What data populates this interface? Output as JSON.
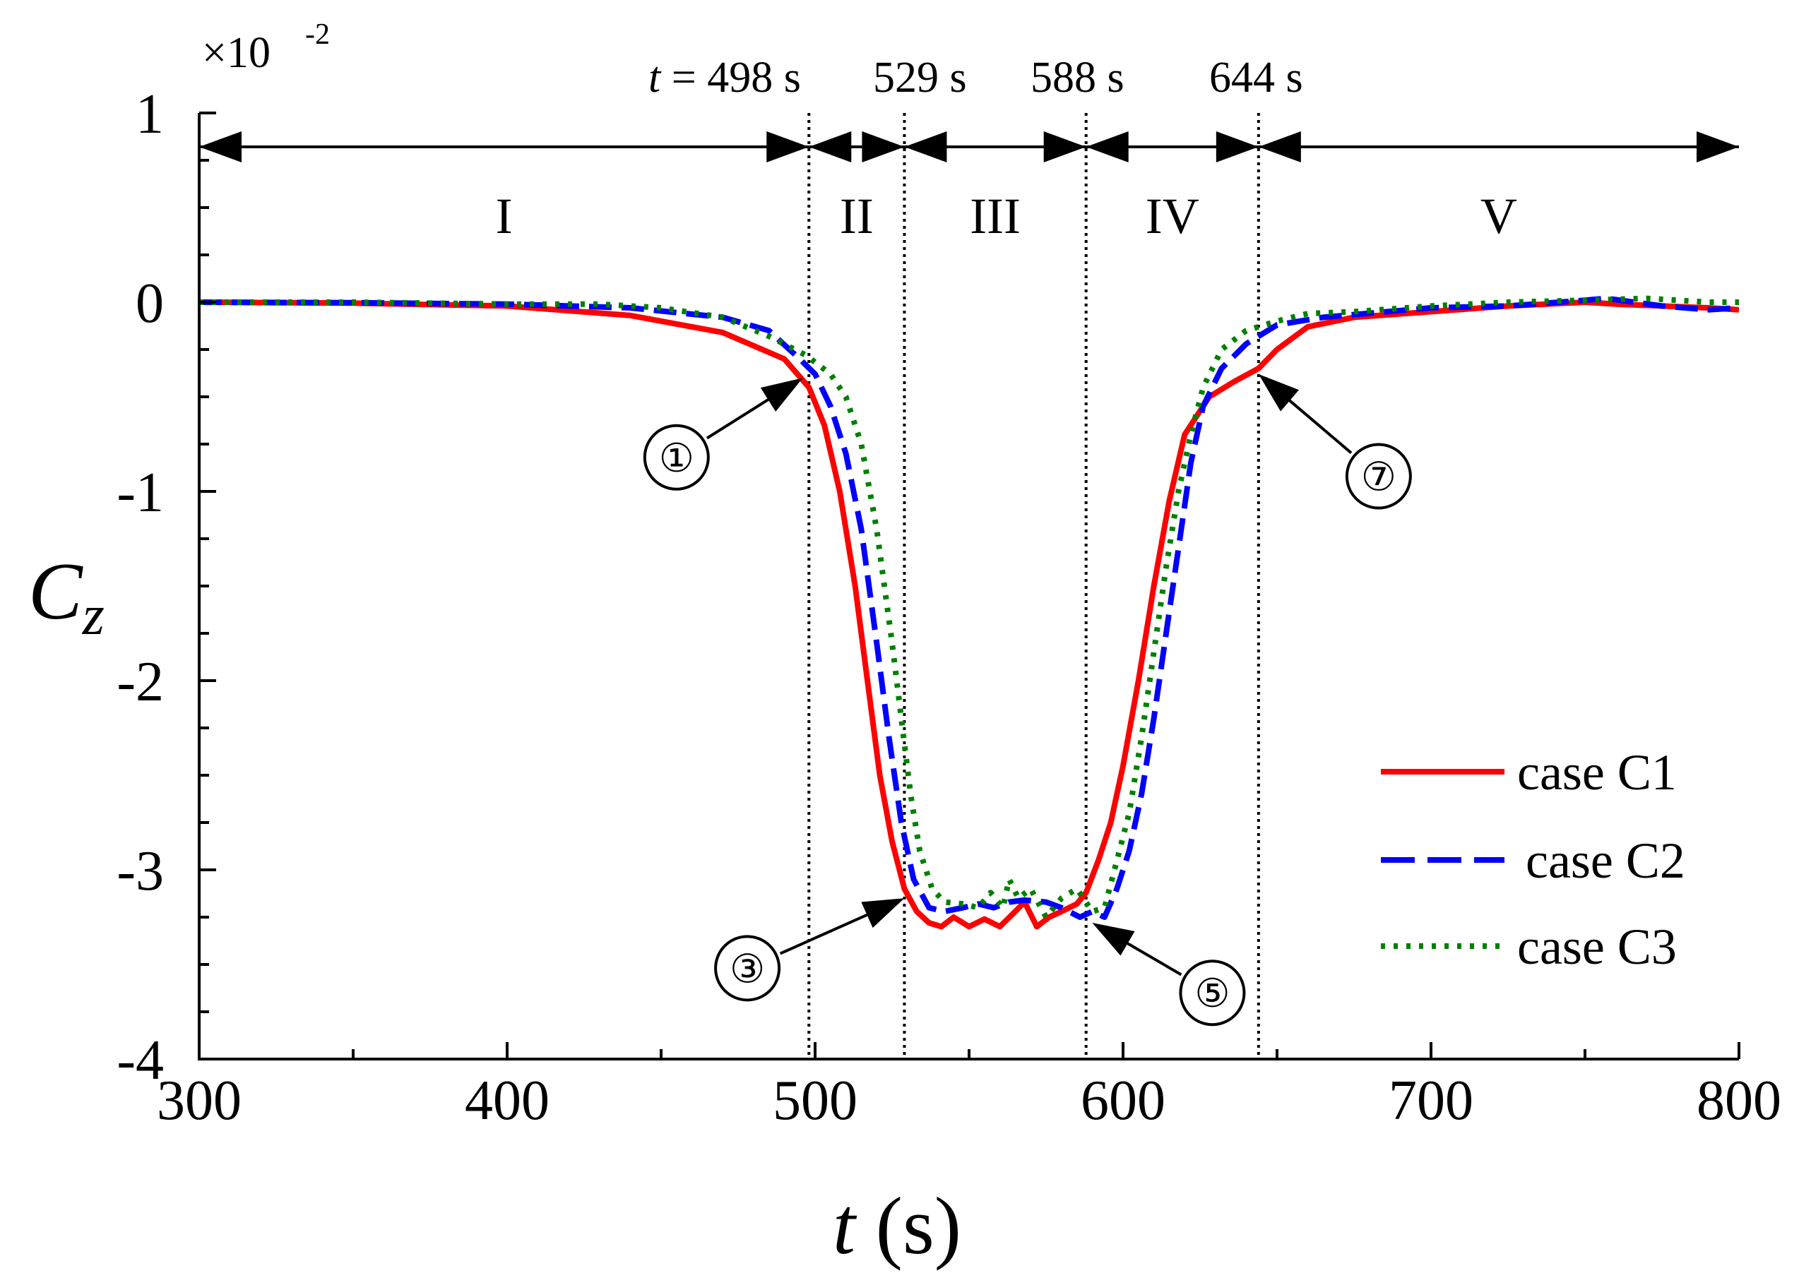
{
  "chart_data": {
    "type": "line",
    "xlabel_var": "t",
    "xlabel_unit": " (s)",
    "ylabel_main": "C",
    "ylabel_sub": "z",
    "y_scale_prefix": "×10",
    "y_scale_exponent": "-2",
    "xlim": [
      300,
      800
    ],
    "ylim": [
      -4,
      1
    ],
    "x_ticks": [
      300,
      400,
      500,
      600,
      700,
      800
    ],
    "x_tick_labels": [
      "300",
      "400",
      "500",
      "600",
      "700",
      "800"
    ],
    "y_ticks": [
      1,
      0,
      -1,
      -2,
      -3,
      -4
    ],
    "y_tick_labels": [
      "1",
      "0",
      "-1",
      "-2",
      "-3",
      "-4"
    ],
    "grid": false,
    "legend_position": "bottom-right",
    "series": [
      {
        "name": "case C1",
        "color": "#ff0000",
        "style": "solid",
        "points": [
          [
            300,
            0
          ],
          [
            350,
            -0.005
          ],
          [
            400,
            -0.02
          ],
          [
            440,
            -0.07
          ],
          [
            470,
            -0.16
          ],
          [
            490,
            -0.3
          ],
          [
            498,
            -0.45
          ],
          [
            503,
            -0.65
          ],
          [
            508,
            -1.0
          ],
          [
            513,
            -1.5
          ],
          [
            517,
            -2.0
          ],
          [
            521,
            -2.5
          ],
          [
            525,
            -2.85
          ],
          [
            529,
            -3.1
          ],
          [
            533,
            -3.22
          ],
          [
            537,
            -3.28
          ],
          [
            541,
            -3.3
          ],
          [
            545,
            -3.25
          ],
          [
            550,
            -3.3
          ],
          [
            555,
            -3.26
          ],
          [
            560,
            -3.3
          ],
          [
            565,
            -3.22
          ],
          [
            568,
            -3.17
          ],
          [
            572,
            -3.3
          ],
          [
            576,
            -3.25
          ],
          [
            580,
            -3.22
          ],
          [
            585,
            -3.18
          ],
          [
            588,
            -3.12
          ],
          [
            592,
            -2.95
          ],
          [
            596,
            -2.75
          ],
          [
            600,
            -2.45
          ],
          [
            605,
            -2.0
          ],
          [
            610,
            -1.5
          ],
          [
            615,
            -1.05
          ],
          [
            620,
            -0.7
          ],
          [
            628,
            -0.5
          ],
          [
            636,
            -0.42
          ],
          [
            644,
            -0.35
          ],
          [
            650,
            -0.25
          ],
          [
            660,
            -0.13
          ],
          [
            675,
            -0.08
          ],
          [
            700,
            -0.05
          ],
          [
            725,
            -0.02
          ],
          [
            750,
            0
          ],
          [
            760,
            -0.01
          ],
          [
            775,
            -0.02
          ],
          [
            790,
            -0.03
          ],
          [
            800,
            -0.04
          ]
        ]
      },
      {
        "name": "case C2",
        "color": "#0000ff",
        "style": "dashed",
        "points": [
          [
            300,
            0
          ],
          [
            350,
            -0.003
          ],
          [
            400,
            -0.01
          ],
          [
            440,
            -0.03
          ],
          [
            470,
            -0.08
          ],
          [
            485,
            -0.15
          ],
          [
            495,
            -0.3
          ],
          [
            500,
            -0.38
          ],
          [
            505,
            -0.55
          ],
          [
            510,
            -0.8
          ],
          [
            515,
            -1.2
          ],
          [
            520,
            -1.8
          ],
          [
            524,
            -2.3
          ],
          [
            528,
            -2.75
          ],
          [
            532,
            -3.05
          ],
          [
            537,
            -3.2
          ],
          [
            542,
            -3.22
          ],
          [
            548,
            -3.2
          ],
          [
            553,
            -3.18
          ],
          [
            558,
            -3.2
          ],
          [
            563,
            -3.17
          ],
          [
            568,
            -3.16
          ],
          [
            575,
            -3.17
          ],
          [
            580,
            -3.2
          ],
          [
            586,
            -3.25
          ],
          [
            590,
            -3.22
          ],
          [
            594,
            -3.25
          ],
          [
            598,
            -3.1
          ],
          [
            602,
            -2.9
          ],
          [
            606,
            -2.6
          ],
          [
            610,
            -2.2
          ],
          [
            614,
            -1.75
          ],
          [
            618,
            -1.3
          ],
          [
            622,
            -0.85
          ],
          [
            626,
            -0.55
          ],
          [
            632,
            -0.35
          ],
          [
            640,
            -0.22
          ],
          [
            650,
            -0.12
          ],
          [
            665,
            -0.08
          ],
          [
            700,
            -0.03
          ],
          [
            725,
            -0.02
          ],
          [
            750,
            0.01
          ],
          [
            757,
            0.02
          ],
          [
            775,
            -0.02
          ],
          [
            790,
            -0.04
          ],
          [
            800,
            -0.03
          ]
        ]
      },
      {
        "name": "case C3",
        "color": "#008000",
        "style": "dotted",
        "points": [
          [
            300,
            0
          ],
          [
            350,
            0
          ],
          [
            400,
            -0.01
          ],
          [
            430,
            -0.01
          ],
          [
            450,
            -0.03
          ],
          [
            470,
            -0.08
          ],
          [
            485,
            -0.18
          ],
          [
            497,
            -0.28
          ],
          [
            505,
            -0.38
          ],
          [
            510,
            -0.5
          ],
          [
            515,
            -0.75
          ],
          [
            520,
            -1.2
          ],
          [
            525,
            -1.8
          ],
          [
            528,
            -2.2
          ],
          [
            531,
            -2.6
          ],
          [
            534,
            -2.9
          ],
          [
            538,
            -3.1
          ],
          [
            542,
            -3.17
          ],
          [
            548,
            -3.18
          ],
          [
            553,
            -3.2
          ],
          [
            557,
            -3.12
          ],
          [
            561,
            -3.2
          ],
          [
            563,
            -3.05
          ],
          [
            566,
            -3.15
          ],
          [
            570,
            -3.1
          ],
          [
            575,
            -3.25
          ],
          [
            580,
            -3.15
          ],
          [
            585,
            -3.1
          ],
          [
            590,
            -3.22
          ],
          [
            594,
            -3.2
          ],
          [
            598,
            -2.95
          ],
          [
            602,
            -2.7
          ],
          [
            606,
            -2.3
          ],
          [
            610,
            -1.85
          ],
          [
            614,
            -1.4
          ],
          [
            618,
            -1.0
          ],
          [
            622,
            -0.7
          ],
          [
            626,
            -0.45
          ],
          [
            632,
            -0.25
          ],
          [
            640,
            -0.15
          ],
          [
            650,
            -0.1
          ],
          [
            660,
            -0.06
          ],
          [
            675,
            -0.05
          ],
          [
            700,
            -0.02
          ],
          [
            725,
            0
          ],
          [
            750,
            0.01
          ],
          [
            770,
            0.02
          ],
          [
            790,
            0
          ],
          [
            800,
            0
          ]
        ]
      }
    ],
    "boundary_lines": [
      498,
      529,
      588,
      644
    ],
    "boundary_labels": [
      "t = 498 s",
      "529 s",
      "588 s",
      "644 s"
    ],
    "boundary_label_var": "t",
    "boundary_label_rest": " = 498 s",
    "phases": [
      {
        "label": "I",
        "x_start": 300,
        "x_end": 498
      },
      {
        "label": "II",
        "x_start": 498,
        "x_end": 529
      },
      {
        "label": "III",
        "x_start": 529,
        "x_end": 588
      },
      {
        "label": "IV",
        "x_start": 588,
        "x_end": 644
      },
      {
        "label": "V",
        "x_start": 644,
        "x_end": 800
      }
    ],
    "point_markers": [
      {
        "label": "①",
        "target": [
          496,
          -0.4
        ],
        "label_at": [
          455,
          -0.82
        ]
      },
      {
        "label": "③",
        "target": [
          529,
          -3.15
        ],
        "label_at": [
          478,
          -3.52
        ]
      },
      {
        "label": "⑤",
        "target": [
          590,
          -3.28
        ],
        "label_at": [
          629,
          -3.65
        ]
      },
      {
        "label": "⑦",
        "target": [
          644,
          -0.38
        ],
        "label_at": [
          683,
          -0.92
        ]
      }
    ]
  }
}
